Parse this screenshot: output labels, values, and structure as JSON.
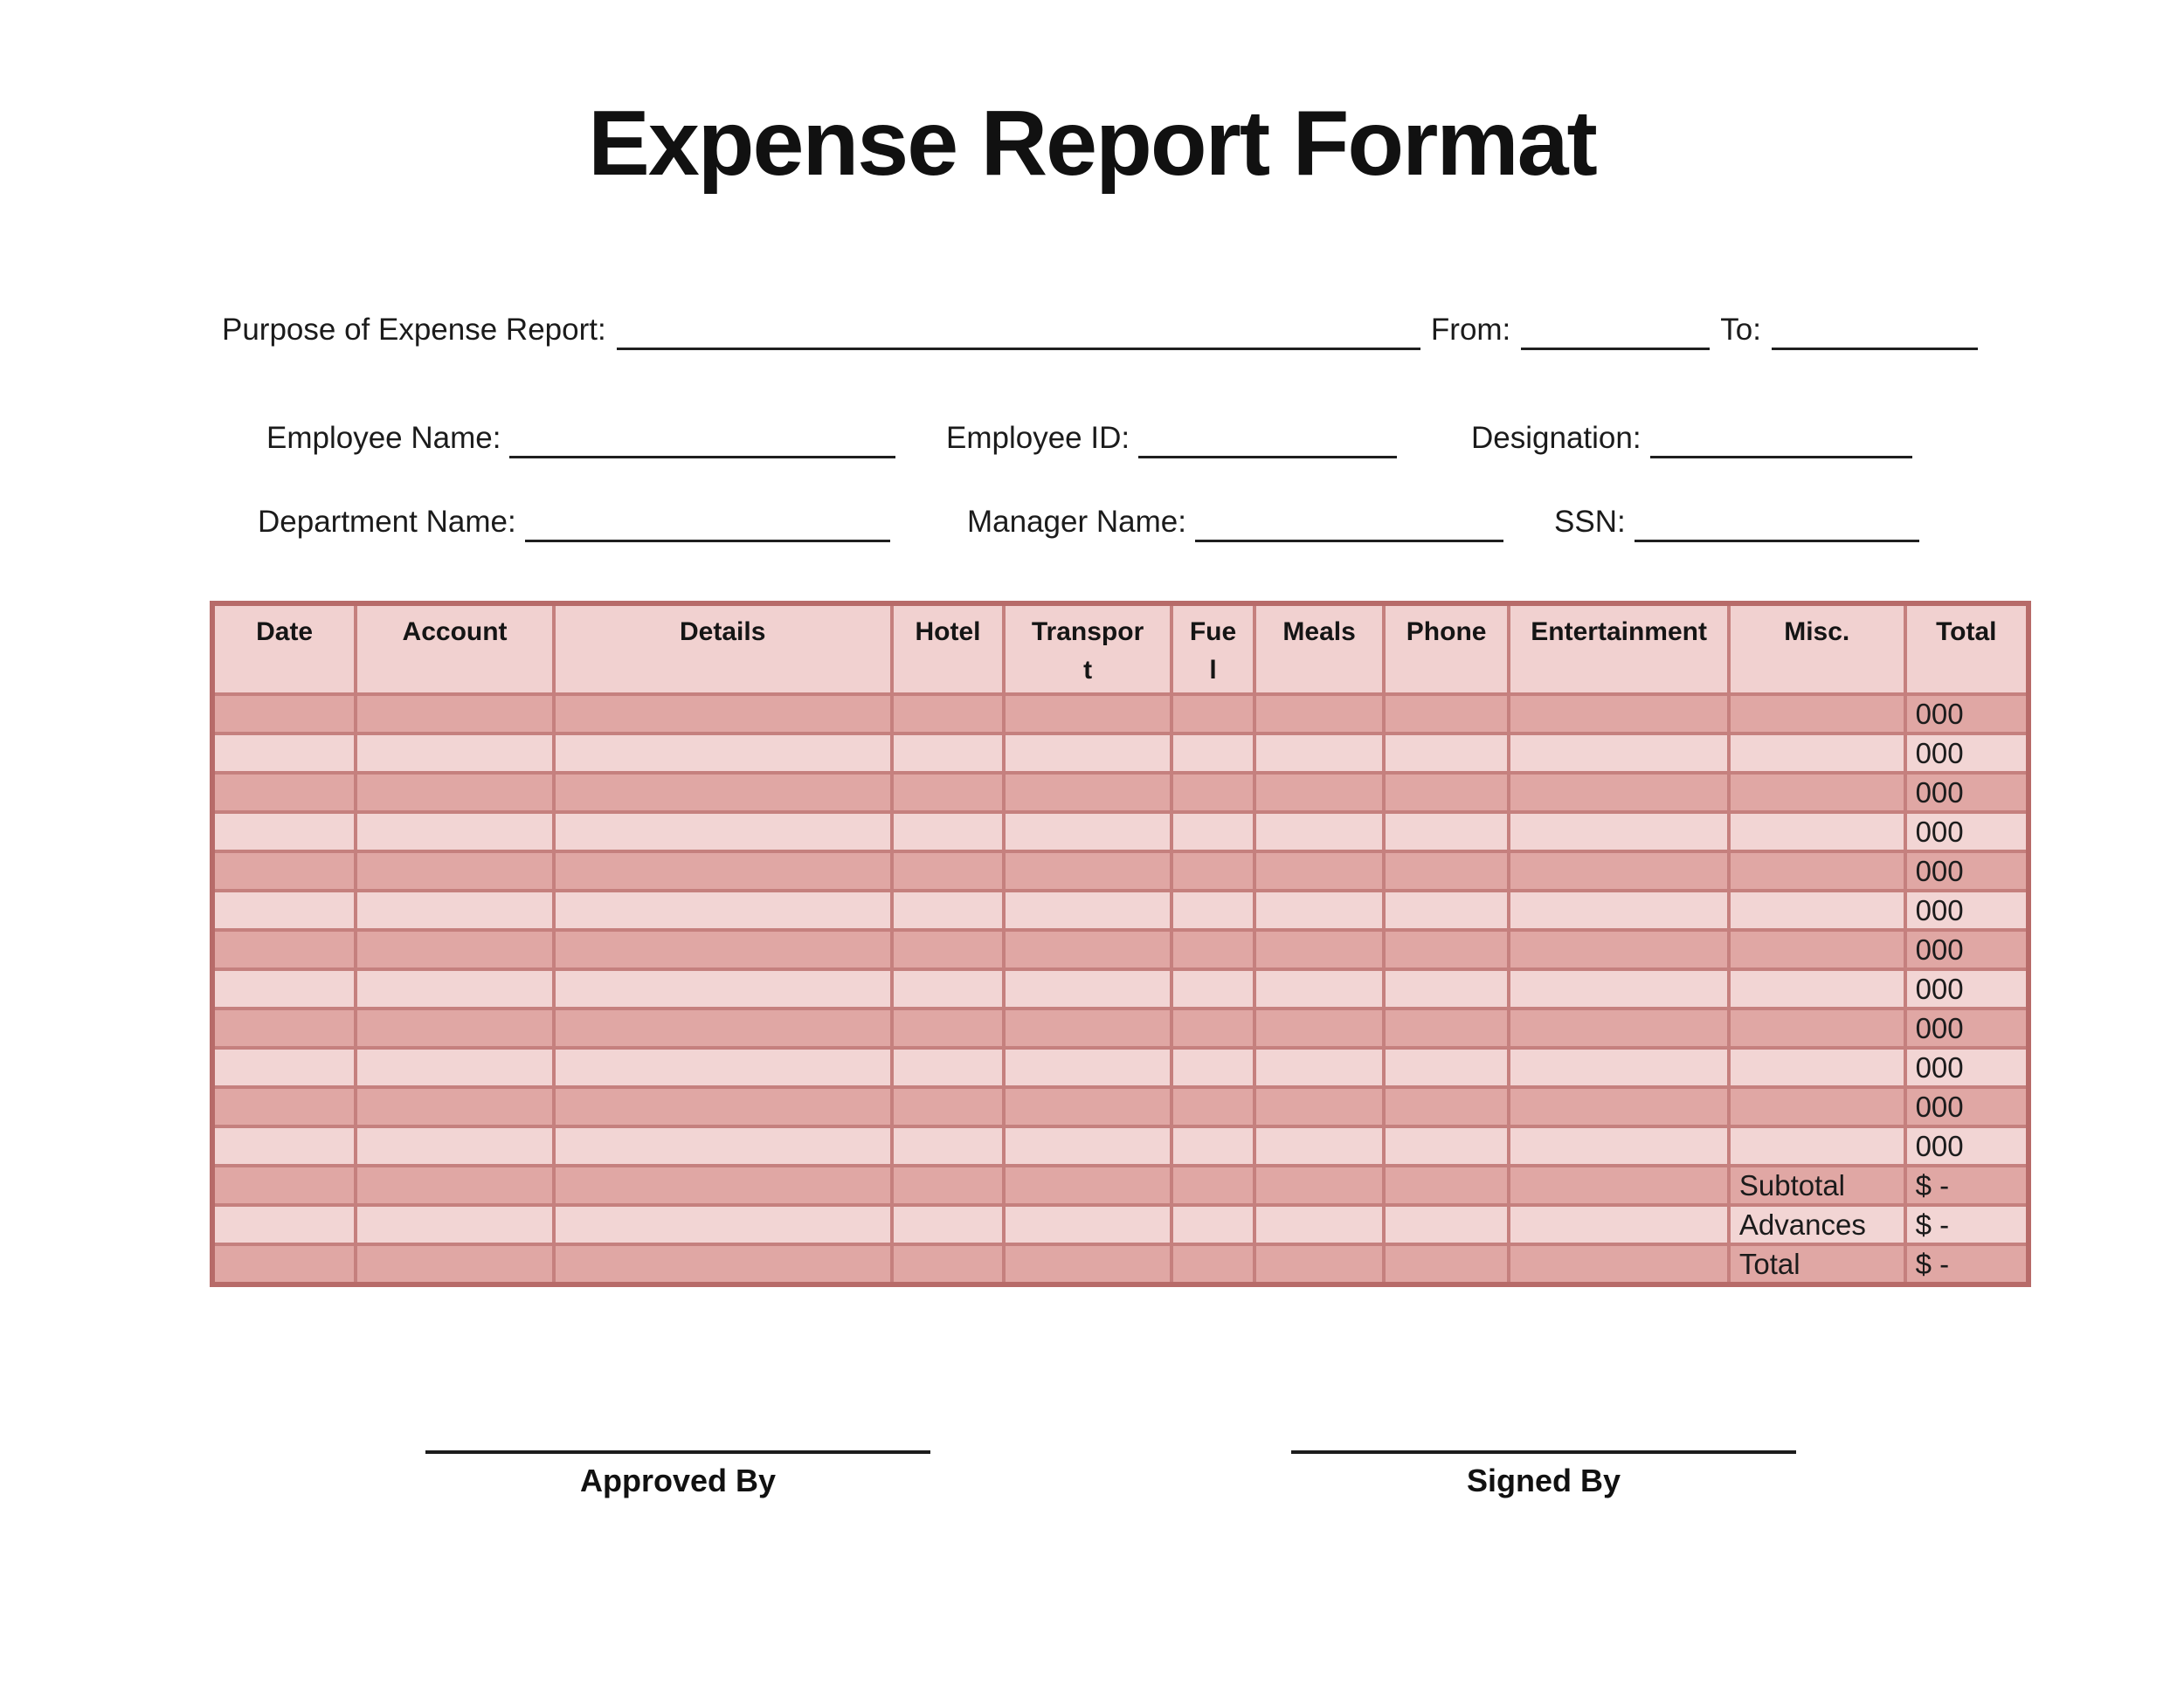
{
  "title": "Expense Report Format",
  "fields": {
    "purpose": {
      "label": "Purpose of Expense Report:"
    },
    "from": {
      "label": "From:"
    },
    "to": {
      "label": "To:"
    },
    "employee_name": {
      "label": "Employee Name:"
    },
    "employee_id": {
      "label": "Employee ID:"
    },
    "designation": {
      "label": "Designation:"
    },
    "department_name": {
      "label": "Department Name:"
    },
    "manager_name": {
      "label": "Manager Name:"
    },
    "ssn": {
      "label": "SSN:"
    }
  },
  "table": {
    "columns": [
      {
        "label": "Date"
      },
      {
        "label": "Account"
      },
      {
        "label": "Details"
      },
      {
        "label": "Hotel"
      },
      {
        "label": "Transport"
      },
      {
        "label": "Fuel"
      },
      {
        "label": "Meals"
      },
      {
        "label": "Phone"
      },
      {
        "label": "Entertainment"
      },
      {
        "label": "Misc."
      },
      {
        "label": "Total"
      }
    ],
    "data_rows": [
      {
        "total": "000"
      },
      {
        "total": "000"
      },
      {
        "total": "000"
      },
      {
        "total": "000"
      },
      {
        "total": "000"
      },
      {
        "total": "000"
      },
      {
        "total": "000"
      },
      {
        "total": "000"
      },
      {
        "total": "000"
      },
      {
        "total": "000"
      },
      {
        "total": "000"
      },
      {
        "total": "000"
      }
    ],
    "summary_rows": [
      {
        "label": "Subtotal",
        "value": "$ -"
      },
      {
        "label": "Advances",
        "value": "$ -"
      },
      {
        "label": "Total",
        "value": "$ -"
      }
    ]
  },
  "signatures": [
    {
      "label": "Approved By"
    },
    {
      "label": "Signed By"
    }
  ],
  "colors": {
    "row_dark": "#e0a7a4",
    "row_light": "#f2d5d4",
    "header_bg": "#f1d1d0",
    "grid_border": "#c5807e",
    "outer_border": "#b76b69"
  }
}
